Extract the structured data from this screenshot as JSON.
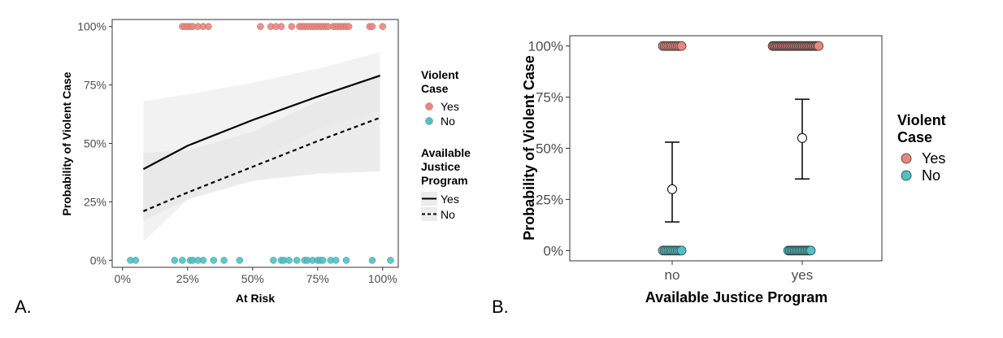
{
  "colors": {
    "yes": "#E8877F",
    "no": "#4FC1C4",
    "band": "#e6e6e6",
    "band_light": "#f2f2f2",
    "line": "#000000"
  },
  "chart_data": [
    {
      "panel": "A.",
      "type": "line",
      "xlabel": "At Risk",
      "ylabel": "Probability of Violent Case",
      "xlim": [
        -0.04,
        1.06
      ],
      "ylim": [
        -0.03,
        1.03
      ],
      "x_ticks": [
        0,
        0.25,
        0.5,
        0.75,
        1.0
      ],
      "x_tick_labels": [
        "0%",
        "25%",
        "50%",
        "75%",
        "100%"
      ],
      "y_ticks": [
        0,
        0.25,
        0.5,
        0.75,
        1.0
      ],
      "y_tick_labels": [
        "0%",
        "25%",
        "50%",
        "75%",
        "100%"
      ],
      "grid": false,
      "legend_position": "right",
      "series": [
        {
          "name": "Yes",
          "style": "solid",
          "x": [
            0.08,
            0.25,
            0.5,
            0.75,
            0.99
          ],
          "y": [
            0.39,
            0.49,
            0.6,
            0.7,
            0.79
          ],
          "ci_low": [
            0.08,
            0.26,
            0.42,
            0.56,
            0.64
          ],
          "ci_high": [
            0.68,
            0.71,
            0.76,
            0.82,
            0.89
          ]
        },
        {
          "name": "No",
          "style": "dashed",
          "x": [
            0.08,
            0.25,
            0.5,
            0.75,
            0.99
          ],
          "y": [
            0.21,
            0.29,
            0.4,
            0.51,
            0.61
          ],
          "ci_low": [
            0.17,
            0.26,
            0.34,
            0.37,
            0.38
          ],
          "ci_high": [
            0.46,
            0.47,
            0.55,
            0.68,
            0.8
          ]
        }
      ],
      "points_yes": [
        0.23,
        0.24,
        0.25,
        0.26,
        0.27,
        0.29,
        0.31,
        0.33,
        0.53,
        0.57,
        0.59,
        0.61,
        0.65,
        0.68,
        0.69,
        0.7,
        0.71,
        0.72,
        0.73,
        0.74,
        0.75,
        0.76,
        0.77,
        0.78,
        0.79,
        0.81,
        0.82,
        0.83,
        0.84,
        0.85,
        0.86,
        0.87,
        0.95,
        0.96,
        1.0
      ],
      "points_no": [
        0.03,
        0.05,
        0.2,
        0.23,
        0.26,
        0.27,
        0.29,
        0.31,
        0.35,
        0.39,
        0.45,
        0.58,
        0.61,
        0.62,
        0.64,
        0.67,
        0.7,
        0.71,
        0.73,
        0.75,
        0.76,
        0.77,
        0.8,
        0.82,
        0.86,
        0.96,
        1.03
      ],
      "legend": {
        "case_title": [
          "Violent",
          "Case"
        ],
        "case_items": [
          "Yes",
          "No"
        ],
        "program_title": [
          "Available",
          "Justice",
          "Program"
        ],
        "program_items": [
          "Yes",
          "No"
        ]
      }
    },
    {
      "panel": "B.",
      "type": "scatter",
      "xlabel": "Available Justice Program",
      "ylabel": "Probability of Violent Case",
      "categories": [
        "no",
        "yes"
      ],
      "ylim": [
        -0.05,
        1.05
      ],
      "y_ticks": [
        0,
        0.25,
        0.5,
        0.75,
        1.0
      ],
      "y_tick_labels": [
        "0%",
        "25%",
        "50%",
        "75%",
        "100%"
      ],
      "grid": false,
      "legend_position": "right",
      "estimates": [
        {
          "category": "no",
          "mean": 0.3,
          "low": 0.14,
          "high": 0.53
        },
        {
          "category": "yes",
          "mean": 0.55,
          "low": 0.35,
          "high": 0.74
        }
      ],
      "point_spread": [
        {
          "category": "no",
          "yes_from": -0.24,
          "yes_to": 0.24,
          "yes_count": 11,
          "no_from": -0.24,
          "no_to": 0.24,
          "no_count": 11
        },
        {
          "category": "yes",
          "yes_from": -0.76,
          "yes_to": 0.42,
          "yes_count": 36,
          "no_from": -0.36,
          "no_to": 0.22,
          "no_count": 15
        }
      ],
      "legend": {
        "case_title": [
          "Violent",
          "Case"
        ],
        "case_items": [
          "Yes",
          "No"
        ]
      }
    }
  ]
}
